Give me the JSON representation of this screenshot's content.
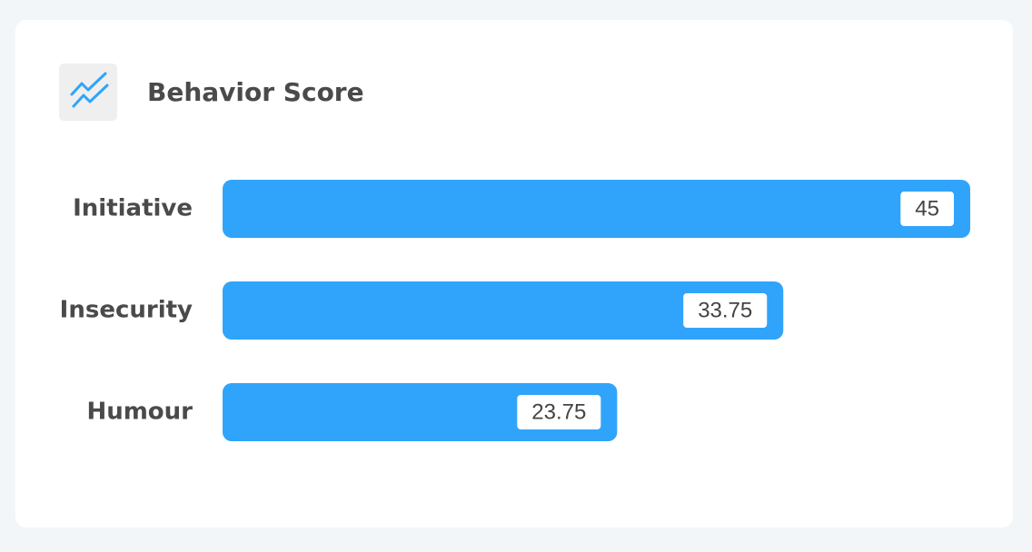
{
  "chart_data": {
    "type": "bar",
    "orientation": "horizontal",
    "title": "Behavior Score",
    "categories": [
      "Initiative",
      "Insecurity",
      "Humour"
    ],
    "values": [
      45,
      33.75,
      23.75
    ],
    "color": "#30a4fb"
  }
}
